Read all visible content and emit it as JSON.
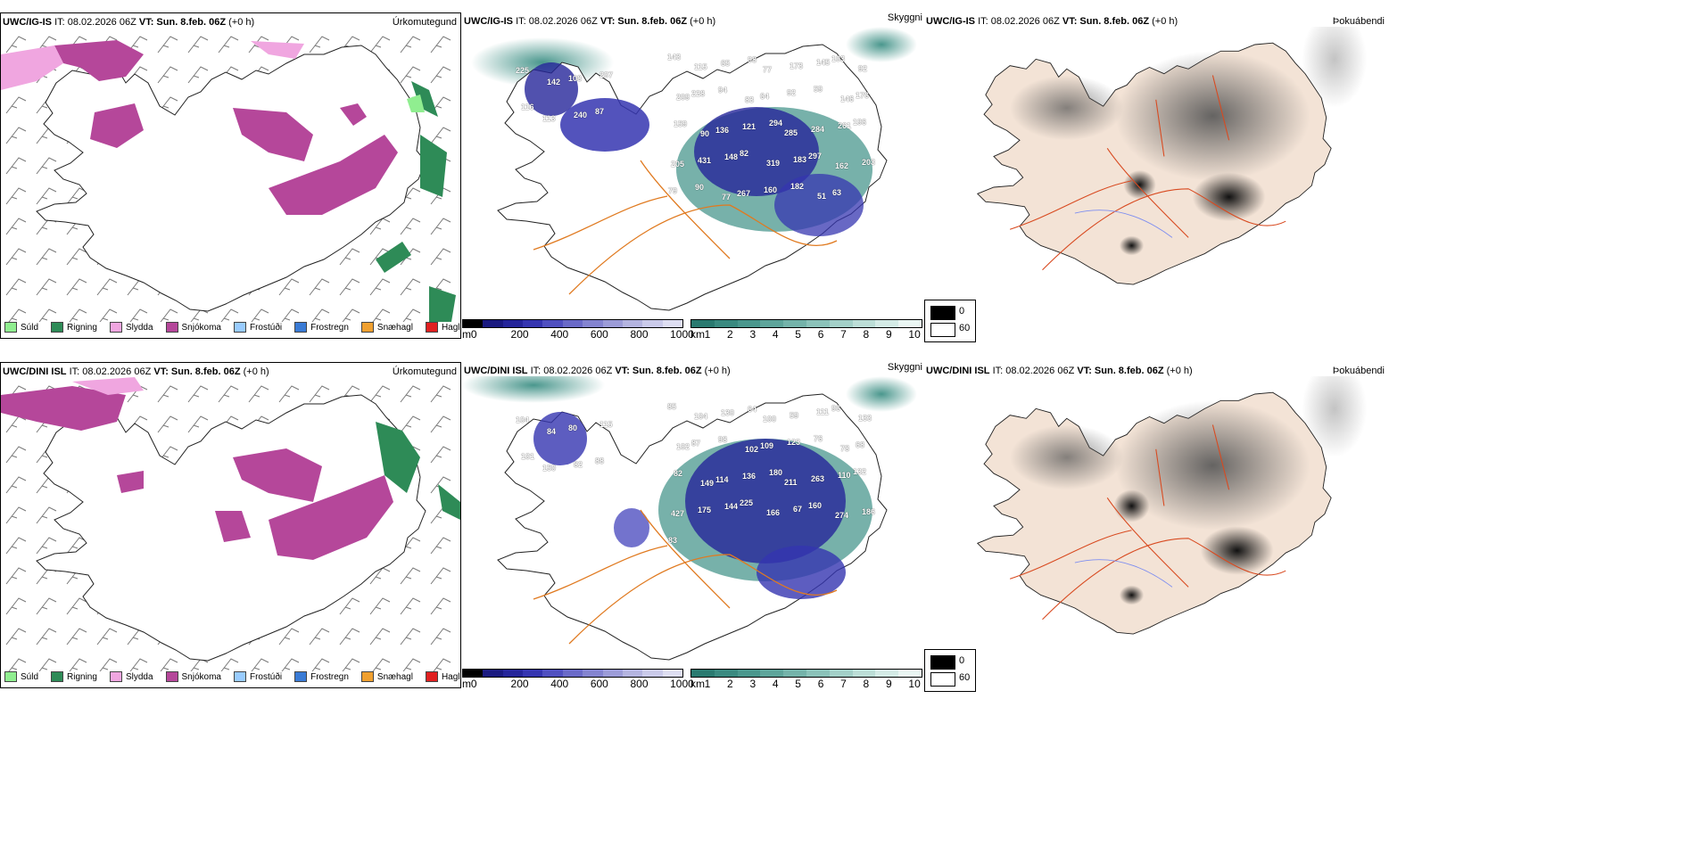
{
  "rows": [
    {
      "model": "UWC/IG-IS",
      "it": "IT: 08.02.2026 06Z",
      "vt_label": "VT:",
      "vt": "Sun. 8.feb. 06Z",
      "offset": "(+0 h)",
      "ceiling_numbers": [
        "225",
        "142",
        "108",
        "207",
        "116",
        "113",
        "240",
        "87",
        "143",
        "115",
        "65",
        "98",
        "77",
        "173",
        "145",
        "103",
        "92",
        "209",
        "228",
        "94",
        "83",
        "64",
        "92",
        "59",
        "146",
        "176",
        "159",
        "90",
        "136",
        "121",
        "294",
        "285",
        "284",
        "261",
        "196",
        "205",
        "431",
        "148",
        "82",
        "319",
        "183",
        "297",
        "162",
        "203",
        "79",
        "90",
        "77",
        "267",
        "160",
        "182",
        "51",
        "63"
      ]
    },
    {
      "model": "UWC/DINI ISL",
      "it": "IT: 08.02.2026 06Z",
      "vt_label": "VT:",
      "vt": "Sun. 8.feb. 06Z",
      "offset": "(+0 h)",
      "ceiling_numbers": [
        "104",
        "84",
        "80",
        "115",
        "101",
        "150",
        "82",
        "88",
        "85",
        "104",
        "130",
        "64",
        "100",
        "59",
        "111",
        "96",
        "133",
        "102",
        "87",
        "98",
        "102",
        "109",
        "123",
        "76",
        "78",
        "68",
        "82",
        "149",
        "114",
        "136",
        "180",
        "211",
        "263",
        "110",
        "132",
        "427",
        "175",
        "144",
        "225",
        "166",
        "67",
        "160",
        "274",
        "186",
        "83"
      ]
    }
  ],
  "panels": {
    "precip_type": "Úrkomutegund",
    "visibility": "Skyggni",
    "fog": "Þokuábendi"
  },
  "precip_legend": [
    {
      "label": "Súld",
      "color": "#90ee90"
    },
    {
      "label": "Rigning",
      "color": "#2e8b57"
    },
    {
      "label": "Slydda",
      "color": "#f0a6e0"
    },
    {
      "label": "Snjókoma",
      "color": "#b5479a"
    },
    {
      "label": "Frostúði",
      "color": "#99ccff"
    },
    {
      "label": "Frostregn",
      "color": "#3a7bd5"
    },
    {
      "label": "Snæhagl",
      "color": "#f0a030"
    },
    {
      "label": "Haglél",
      "color": "#e02020"
    }
  ],
  "ceiling_bar": {
    "unit": "m",
    "ticks": [
      "0",
      "200",
      "400",
      "600",
      "800",
      "1000"
    ],
    "colors": [
      "#000000",
      "#1a1a80",
      "#25259a",
      "#3535b0",
      "#5050c0",
      "#6a6ac8",
      "#8484d0",
      "#9c9cd8",
      "#b4b4e0",
      "#cacaea",
      "#dedef2"
    ]
  },
  "visibility_bar": {
    "unit": "km",
    "ticks": [
      "1",
      "2",
      "3",
      "4",
      "5",
      "6",
      "7",
      "8",
      "9",
      "10"
    ],
    "colors": [
      "#2a7a70",
      "#3a8a80",
      "#4a978d",
      "#5ea59b",
      "#74b3aa",
      "#8bc2b9",
      "#a3d0c8",
      "#bcded7",
      "#d4ebe6",
      "#eaf6f3"
    ]
  },
  "fog_legend": [
    {
      "label": "0",
      "color": "#000000"
    },
    {
      "label": "60",
      "color": "#ffffff"
    }
  ]
}
